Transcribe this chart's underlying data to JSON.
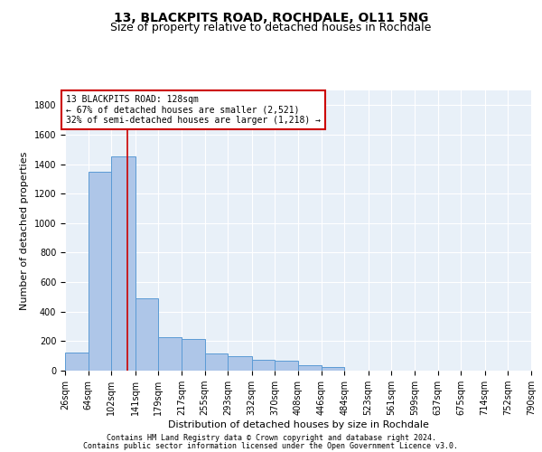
{
  "title1": "13, BLACKPITS ROAD, ROCHDALE, OL11 5NG",
  "title2": "Size of property relative to detached houses in Rochdale",
  "xlabel": "Distribution of detached houses by size in Rochdale",
  "ylabel": "Number of detached properties",
  "bar_edges": [
    26,
    64,
    102,
    141,
    179,
    217,
    255,
    293,
    332,
    370,
    408,
    446,
    484,
    523,
    561,
    599,
    637,
    675,
    714,
    752,
    790
  ],
  "bar_heights": [
    120,
    1350,
    1450,
    490,
    225,
    215,
    115,
    100,
    75,
    65,
    35,
    25,
    0,
    0,
    0,
    0,
    0,
    0,
    0,
    0
  ],
  "bar_color": "#aec6e8",
  "bar_edgecolor": "#5b9bd5",
  "property_line_x": 128,
  "property_line_color": "#cc0000",
  "annotation_line1": "13 BLACKPITS ROAD: 128sqm",
  "annotation_line2": "← 67% of detached houses are smaller (2,521)",
  "annotation_line3": "32% of semi-detached houses are larger (1,218) →",
  "annotation_box_color": "#cc0000",
  "ylim": [
    0,
    1900
  ],
  "yticks": [
    0,
    200,
    400,
    600,
    800,
    1000,
    1200,
    1400,
    1600,
    1800
  ],
  "background_color": "#e8f0f8",
  "grid_color": "#ffffff",
  "footer1": "Contains HM Land Registry data © Crown copyright and database right 2024.",
  "footer2": "Contains public sector information licensed under the Open Government Licence v3.0.",
  "title_fontsize": 10,
  "subtitle_fontsize": 9,
  "axis_label_fontsize": 8,
  "tick_fontsize": 7,
  "annotation_fontsize": 7,
  "footer_fontsize": 6
}
